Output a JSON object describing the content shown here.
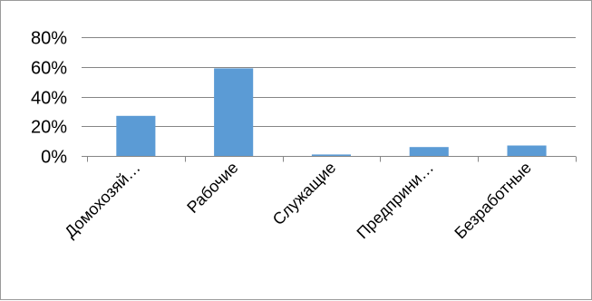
{
  "chart_data": {
    "type": "bar",
    "categories": [
      "Домохозяй…",
      "Рабочие",
      "Служащие",
      "Предприни…",
      "Безработные"
    ],
    "values": [
      27,
      59,
      1,
      6,
      7
    ],
    "y_unit": "%",
    "ylim": [
      0,
      80
    ],
    "y_ticks": [
      0,
      20,
      40,
      60,
      80
    ],
    "y_tick_labels": [
      "0%",
      "20%",
      "40%",
      "60%",
      "80%"
    ],
    "grid": true,
    "legend": "none",
    "bar_color": "#5B9BD5",
    "grid_color": "#868686",
    "axis_color": "#868686"
  }
}
